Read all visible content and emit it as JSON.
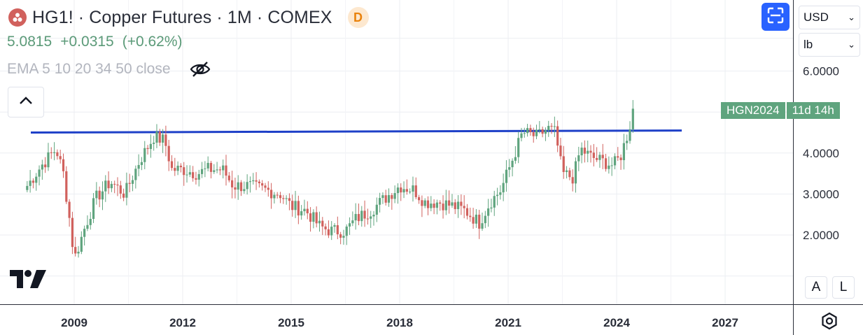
{
  "header": {
    "title": "HG1! · Copper Futures · 1M · COMEX",
    "badge": "D",
    "last_price": "5.0815",
    "change": "+0.0315",
    "change_pct": "(+0.62%)",
    "indicator": "EMA 5 10 20 34 50 close"
  },
  "controls": {
    "currency": "USD",
    "unit": "lb",
    "auto_label": "A",
    "log_label": "L"
  },
  "price_tag": {
    "symbol": "HGN2024",
    "countdown": "11d 14h"
  },
  "colors": {
    "up": "#5fa47e",
    "down": "#d1615d",
    "trendline": "#1e40c8",
    "grid": "#eceef2",
    "accent": "#2962ff"
  },
  "icons": {
    "symbol": "copper-symbol-icon",
    "visibility": "eye-off-icon",
    "collapse": "chevron-up-icon",
    "fullscreen": "fullscreen-icon",
    "settings": "settings-gear-icon",
    "logo": "tradingview-logo-icon"
  },
  "chart_data": {
    "type": "candlestick",
    "interval": "1M",
    "x_ticks": [
      "2009",
      "2012",
      "2015",
      "2018",
      "2021",
      "2024",
      "2027"
    ],
    "y_ticks": [
      "2.0000",
      "3.0000",
      "4.0000",
      "6.0000"
    ],
    "ylim": [
      1.0,
      6.6
    ],
    "xlim": [
      2007.7,
      2029.0
    ],
    "grid": true,
    "trendline": {
      "x": [
        2007.8,
        2025.8
      ],
      "y": [
        4.5,
        4.55
      ]
    },
    "anchors": [
      [
        2007.7,
        3.2
      ],
      [
        2008.1,
        3.7
      ],
      [
        2008.5,
        4.1
      ],
      [
        2008.7,
        3.5
      ],
      [
        2008.9,
        2.2
      ],
      [
        2009.0,
        1.4
      ],
      [
        2009.3,
        2.2
      ],
      [
        2009.6,
        2.9
      ],
      [
        2010.0,
        3.3
      ],
      [
        2010.4,
        3.0
      ],
      [
        2010.8,
        3.8
      ],
      [
        2011.2,
        4.4
      ],
      [
        2011.5,
        4.3
      ],
      [
        2011.7,
        3.6
      ],
      [
        2012.0,
        3.6
      ],
      [
        2012.4,
        3.5
      ],
      [
        2012.7,
        3.6
      ],
      [
        2013.1,
        3.6
      ],
      [
        2013.4,
        3.2
      ],
      [
        2013.8,
        3.2
      ],
      [
        2014.3,
        3.1
      ],
      [
        2014.7,
        3.0
      ],
      [
        2015.0,
        2.7
      ],
      [
        2015.4,
        2.6
      ],
      [
        2015.8,
        2.2
      ],
      [
        2016.1,
        2.1
      ],
      [
        2016.5,
        2.1
      ],
      [
        2016.8,
        2.4
      ],
      [
        2017.2,
        2.6
      ],
      [
        2017.6,
        2.9
      ],
      [
        2018.0,
        3.2
      ],
      [
        2018.4,
        3.1
      ],
      [
        2018.7,
        2.8
      ],
      [
        2019.1,
        2.8
      ],
      [
        2019.5,
        2.7
      ],
      [
        2019.8,
        2.6
      ],
      [
        2020.2,
        2.3
      ],
      [
        2020.5,
        2.8
      ],
      [
        2020.8,
        3.1
      ],
      [
        2021.1,
        3.8
      ],
      [
        2021.4,
        4.5
      ],
      [
        2021.8,
        4.4
      ],
      [
        2022.1,
        4.6
      ],
      [
        2022.3,
        4.5
      ],
      [
        2022.5,
        3.5
      ],
      [
        2022.8,
        3.4
      ],
      [
        2023.0,
        4.1
      ],
      [
        2023.3,
        3.9
      ],
      [
        2023.6,
        3.8
      ],
      [
        2023.9,
        3.7
      ],
      [
        2024.1,
        3.9
      ],
      [
        2024.35,
        4.6
      ],
      [
        2024.45,
        5.1
      ]
    ],
    "last_price": 5.0815
  }
}
